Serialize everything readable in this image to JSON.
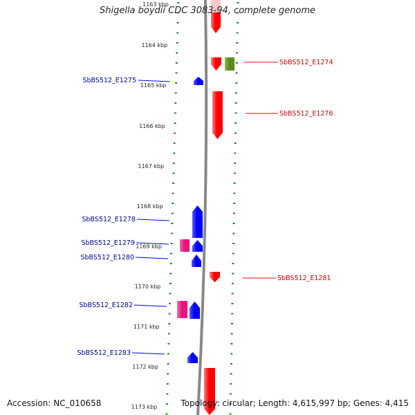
{
  "header": {
    "title": "Shigella boydii CDC 3083-94, complete genome"
  },
  "footer": {
    "accession": "Accession: NC_010658",
    "topology": "Topology: circular; Length: 4,615,997 bp; Genes: 4,415"
  },
  "scale": {
    "unit": "kbp",
    "ticks": [
      "1163 kbp",
      "1164 kbp",
      "1165 kbp",
      "1166 kbp",
      "1167 kbp",
      "1168 kbp",
      "1169 kbp",
      "1170 kbp",
      "1171 kbp",
      "1172 kbp",
      "1173 kbp"
    ]
  },
  "colors": {
    "forward_gene": "#ff0000",
    "reverse_gene": "#0000ff",
    "pseudo_gene": "#e8157a",
    "other_feature": "#5a8a1a",
    "forward_label": "#cc0000",
    "reverse_label": "#000099",
    "backbone": "#888888",
    "tick_marks": "#1a8a1a"
  },
  "genes": {
    "labeled": [
      {
        "label": "SbBS512_E1274",
        "strand": "forward"
      },
      {
        "label": "SbBS512_E1275",
        "strand": "reverse"
      },
      {
        "label": "SbBS512_E1276",
        "strand": "forward"
      },
      {
        "label": "SbBS512_E1278",
        "strand": "reverse"
      },
      {
        "label": "SbBS512_E1279",
        "strand": "reverse"
      },
      {
        "label": "SbBS512_E1280",
        "strand": "reverse"
      },
      {
        "label": "SbBS512_E1281",
        "strand": "forward"
      },
      {
        "label": "SbBS512_E1282",
        "strand": "reverse"
      },
      {
        "label": "SbBS512_E1283",
        "strand": "reverse"
      }
    ]
  }
}
